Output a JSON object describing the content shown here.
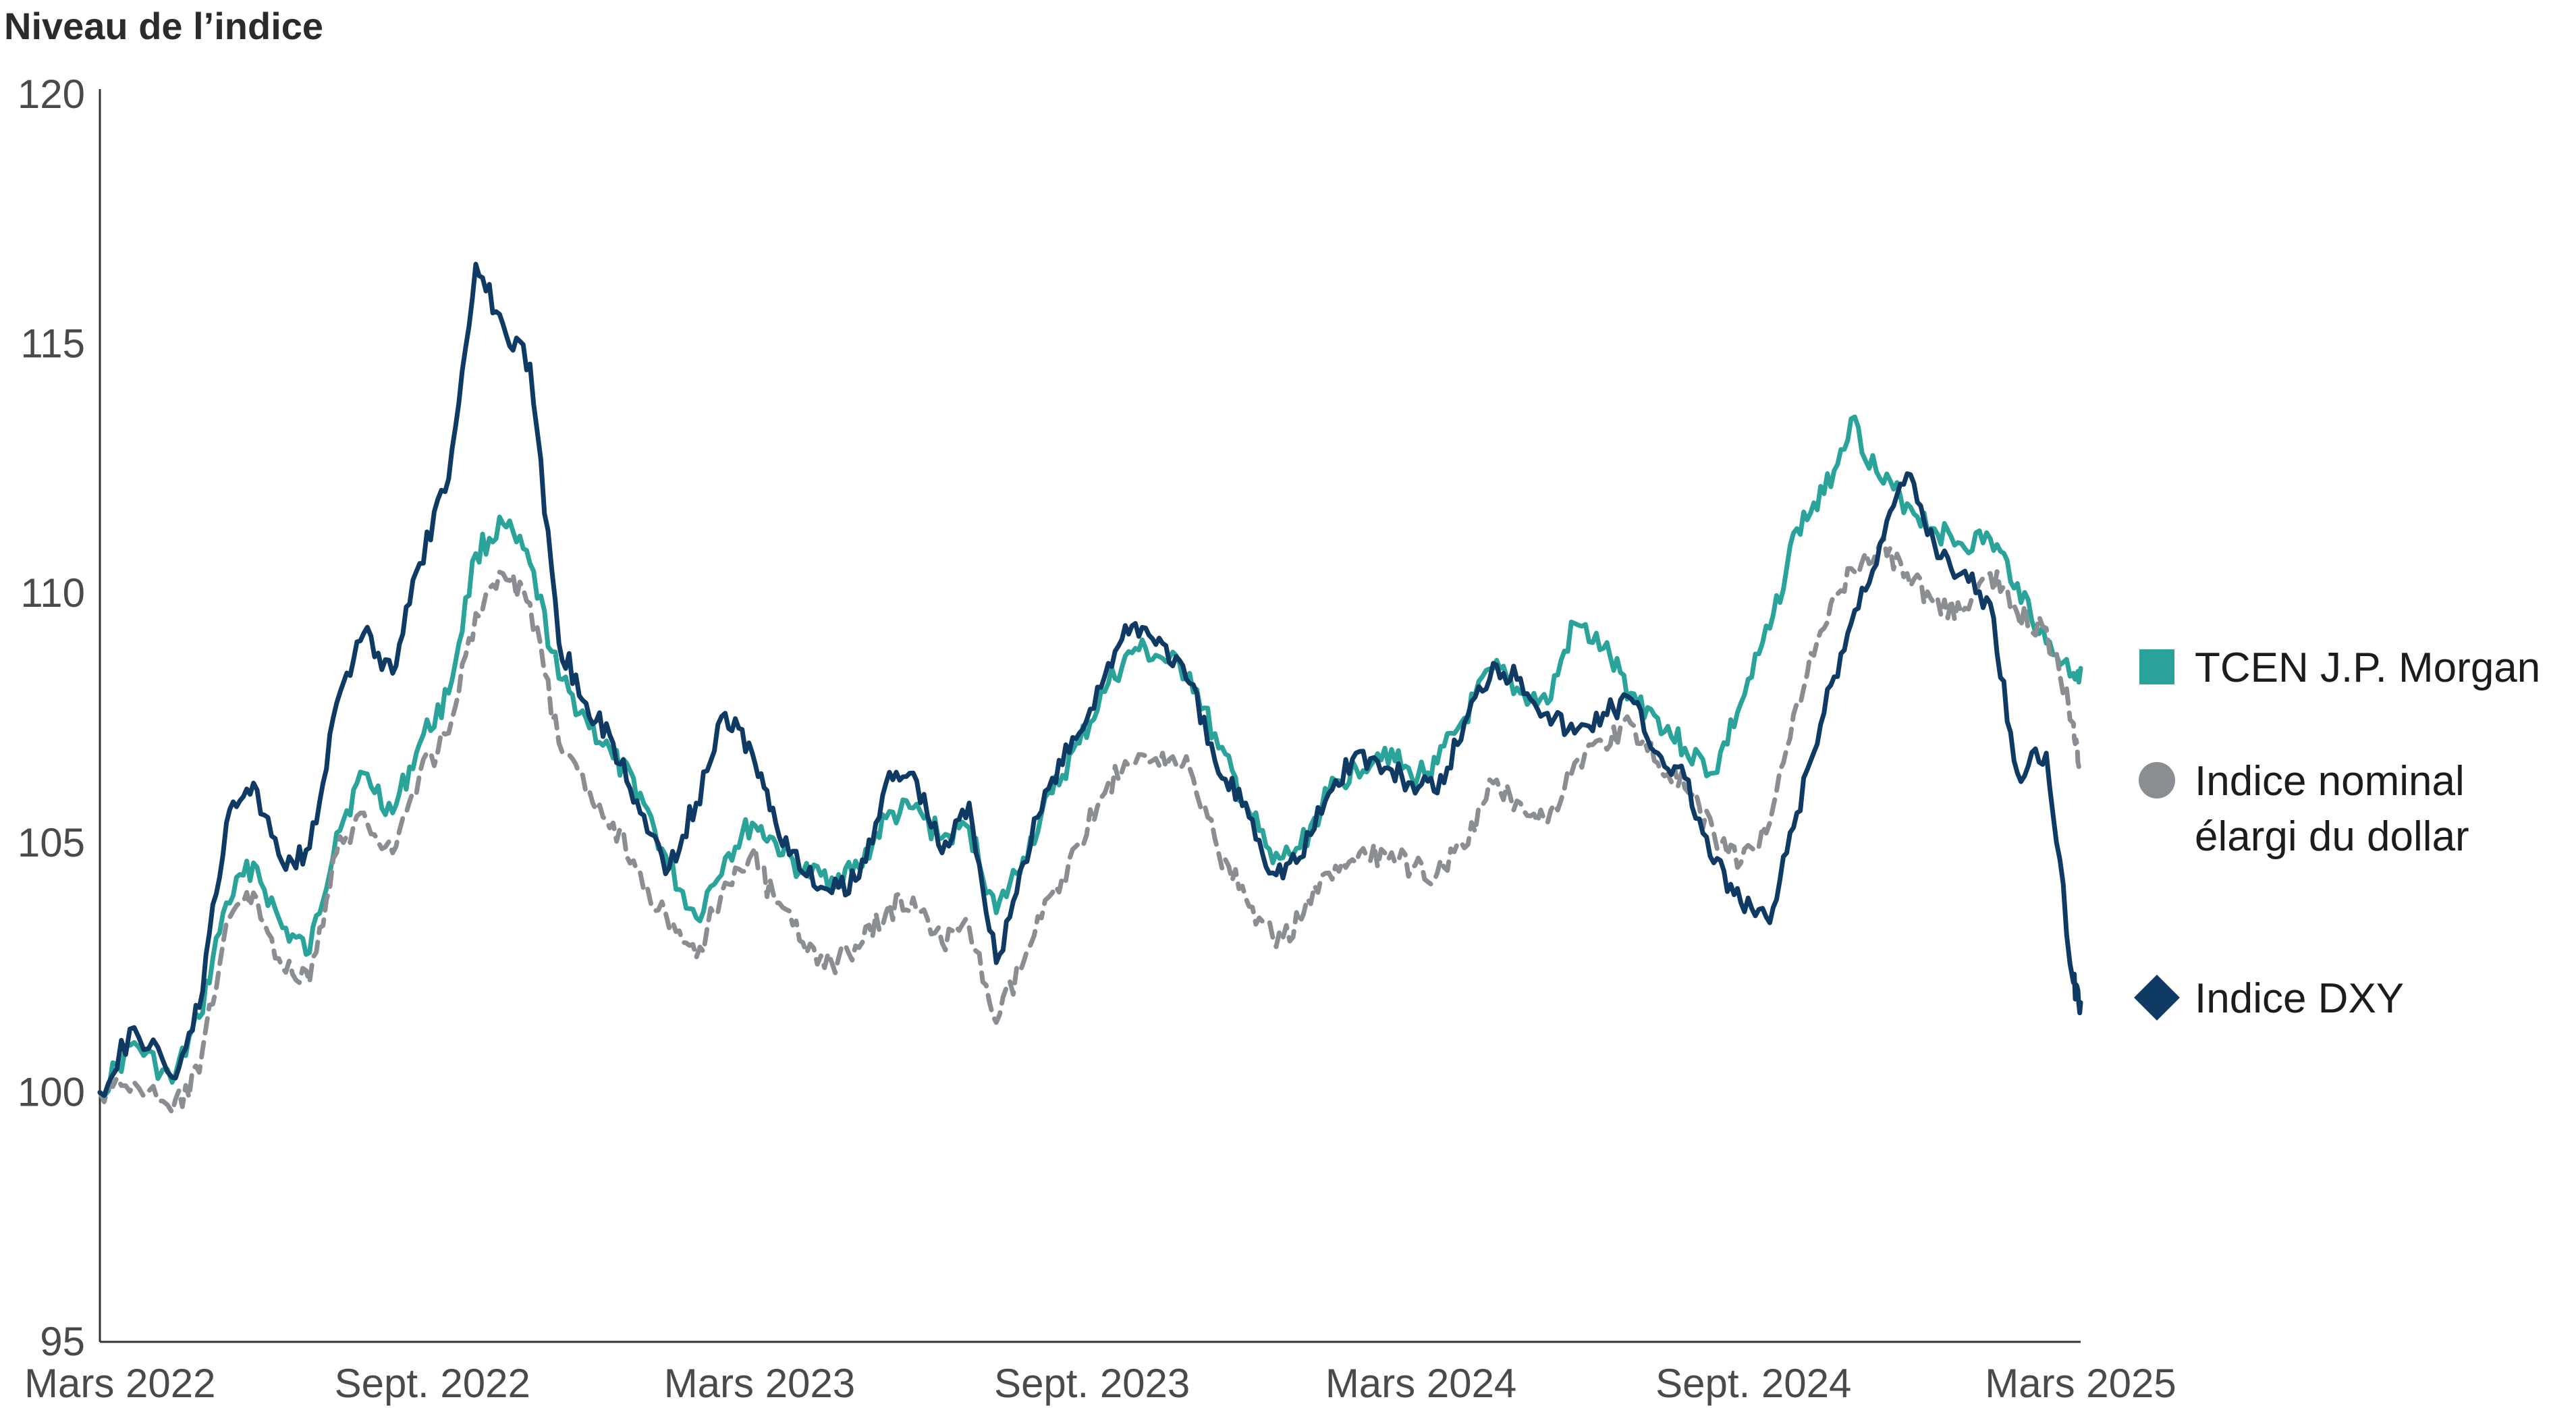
{
  "chart_data": {
    "type": "line",
    "title": "",
    "ylabel": "Niveau de l’indice",
    "xlabel": "",
    "ylim": [
      95,
      120
    ],
    "yticks": [
      95,
      100,
      105,
      110,
      115,
      120
    ],
    "xlim": [
      "2022-03-01",
      "2025-03-01"
    ],
    "xticks": [
      {
        "date": "2022-03-01",
        "label": "Mars 2022"
      },
      {
        "date": "2022-09-01",
        "label": "Sept. 2022"
      },
      {
        "date": "2023-03-01",
        "label": "Mars 2023"
      },
      {
        "date": "2023-09-01",
        "label": "Sept. 2023"
      },
      {
        "date": "2024-03-01",
        "label": "Mars 2024"
      },
      {
        "date": "2024-09-01",
        "label": "Sept. 2024"
      },
      {
        "date": "2025-03-01",
        "label": "Mars 2025"
      }
    ],
    "grid": false,
    "legend_position": "right-end-of-lines",
    "series": [
      {
        "name": "TCEN J.P. Morgan",
        "color": "#2aa39b",
        "style": "solid",
        "marker": "square",
        "points": [
          [
            "2022-03-01",
            100.0
          ],
          [
            "2022-03-20",
            101.0
          ],
          [
            "2022-04-10",
            100.2
          ],
          [
            "2022-04-25",
            101.5
          ],
          [
            "2022-05-10",
            103.8
          ],
          [
            "2022-05-25",
            104.6
          ],
          [
            "2022-06-10",
            103.3
          ],
          [
            "2022-06-25",
            102.8
          ],
          [
            "2022-07-10",
            105.2
          ],
          [
            "2022-07-25",
            106.4
          ],
          [
            "2022-08-10",
            105.6
          ],
          [
            "2022-08-25",
            107.0
          ],
          [
            "2022-09-10",
            108.0
          ],
          [
            "2022-09-25",
            110.8
          ],
          [
            "2022-10-10",
            111.4
          ],
          [
            "2022-10-25",
            110.6
          ],
          [
            "2022-11-10",
            108.3
          ],
          [
            "2022-11-25",
            107.5
          ],
          [
            "2022-12-10",
            106.7
          ],
          [
            "2022-12-25",
            106.0
          ],
          [
            "2023-01-10",
            104.5
          ],
          [
            "2023-01-25",
            103.5
          ],
          [
            "2023-02-10",
            104.7
          ],
          [
            "2023-02-25",
            105.4
          ],
          [
            "2023-03-10",
            105.0
          ],
          [
            "2023-03-25",
            104.4
          ],
          [
            "2023-04-10",
            104.3
          ],
          [
            "2023-04-25",
            104.5
          ],
          [
            "2023-05-10",
            105.5
          ],
          [
            "2023-05-25",
            105.7
          ],
          [
            "2023-06-10",
            105.1
          ],
          [
            "2023-06-25",
            105.3
          ],
          [
            "2023-07-10",
            103.6
          ],
          [
            "2023-07-25",
            104.7
          ],
          [
            "2023-08-10",
            106.0
          ],
          [
            "2023-08-25",
            107.0
          ],
          [
            "2023-09-10",
            108.2
          ],
          [
            "2023-09-25",
            108.9
          ],
          [
            "2023-10-10",
            108.7
          ],
          [
            "2023-10-25",
            108.4
          ],
          [
            "2023-11-10",
            106.9
          ],
          [
            "2023-11-25",
            105.8
          ],
          [
            "2023-12-10",
            104.6
          ],
          [
            "2023-12-25",
            104.9
          ],
          [
            "2024-01-10",
            106.0
          ],
          [
            "2024-01-25",
            106.5
          ],
          [
            "2024-02-10",
            106.9
          ],
          [
            "2024-02-25",
            106.3
          ],
          [
            "2024-03-10",
            106.6
          ],
          [
            "2024-03-25",
            107.5
          ],
          [
            "2024-04-10",
            108.5
          ],
          [
            "2024-04-25",
            108.0
          ],
          [
            "2024-05-10",
            107.8
          ],
          [
            "2024-05-25",
            109.4
          ],
          [
            "2024-06-10",
            108.9
          ],
          [
            "2024-06-25",
            108.0
          ],
          [
            "2024-07-10",
            107.5
          ],
          [
            "2024-07-25",
            106.9
          ],
          [
            "2024-08-10",
            106.4
          ],
          [
            "2024-08-25",
            107.8
          ],
          [
            "2024-09-10",
            109.3
          ],
          [
            "2024-09-25",
            111.3
          ],
          [
            "2024-10-10",
            112.0
          ],
          [
            "2024-10-25",
            113.5
          ],
          [
            "2024-11-10",
            112.3
          ],
          [
            "2024-11-25",
            111.8
          ],
          [
            "2024-12-10",
            111.3
          ],
          [
            "2024-12-25",
            111.0
          ],
          [
            "2025-01-10",
            111.1
          ],
          [
            "2025-01-25",
            110.2
          ],
          [
            "2025-02-10",
            109.0
          ],
          [
            "2025-02-25",
            108.4
          ],
          [
            "2025-03-01",
            108.5
          ]
        ]
      },
      {
        "name": "Indice nominal élargi du dollar",
        "color": "#8a8d91",
        "style": "dashed",
        "marker": "circle",
        "points": [
          [
            "2022-03-01",
            100.0
          ],
          [
            "2022-03-20",
            100.2
          ],
          [
            "2022-04-10",
            99.6
          ],
          [
            "2022-04-25",
            100.4
          ],
          [
            "2022-05-10",
            103.4
          ],
          [
            "2022-05-25",
            104.0
          ],
          [
            "2022-06-10",
            102.5
          ],
          [
            "2022-06-25",
            102.2
          ],
          [
            "2022-07-10",
            104.8
          ],
          [
            "2022-07-25",
            105.6
          ],
          [
            "2022-08-10",
            104.8
          ],
          [
            "2022-08-25",
            106.4
          ],
          [
            "2022-09-10",
            107.2
          ],
          [
            "2022-09-25",
            109.6
          ],
          [
            "2022-10-10",
            110.4
          ],
          [
            "2022-10-25",
            109.8
          ],
          [
            "2022-11-10",
            107.0
          ],
          [
            "2022-11-25",
            106.0
          ],
          [
            "2022-12-10",
            105.4
          ],
          [
            "2022-12-25",
            104.4
          ],
          [
            "2023-01-10",
            103.3
          ],
          [
            "2023-01-25",
            102.7
          ],
          [
            "2023-02-10",
            104.2
          ],
          [
            "2023-02-25",
            104.8
          ],
          [
            "2023-03-10",
            103.8
          ],
          [
            "2023-03-25",
            103.0
          ],
          [
            "2023-04-10",
            102.6
          ],
          [
            "2023-04-25",
            102.9
          ],
          [
            "2023-05-10",
            103.6
          ],
          [
            "2023-05-25",
            103.9
          ],
          [
            "2023-06-10",
            103.0
          ],
          [
            "2023-06-25",
            103.3
          ],
          [
            "2023-07-10",
            101.4
          ],
          [
            "2023-07-25",
            102.6
          ],
          [
            "2023-08-10",
            104.0
          ],
          [
            "2023-08-25",
            105.0
          ],
          [
            "2023-09-10",
            106.2
          ],
          [
            "2023-09-25",
            106.6
          ],
          [
            "2023-10-10",
            106.8
          ],
          [
            "2023-10-25",
            106.5
          ],
          [
            "2023-11-10",
            104.8
          ],
          [
            "2023-11-25",
            103.9
          ],
          [
            "2023-12-10",
            103.1
          ],
          [
            "2023-12-25",
            103.4
          ],
          [
            "2024-01-10",
            104.4
          ],
          [
            "2024-01-25",
            104.6
          ],
          [
            "2024-02-10",
            104.8
          ],
          [
            "2024-02-25",
            104.5
          ],
          [
            "2024-03-10",
            104.4
          ],
          [
            "2024-03-25",
            104.9
          ],
          [
            "2024-04-10",
            106.2
          ],
          [
            "2024-04-25",
            105.8
          ],
          [
            "2024-05-10",
            105.4
          ],
          [
            "2024-05-25",
            106.6
          ],
          [
            "2024-06-10",
            107.0
          ],
          [
            "2024-06-25",
            107.4
          ],
          [
            "2024-07-10",
            106.6
          ],
          [
            "2024-07-25",
            106.1
          ],
          [
            "2024-08-10",
            105.2
          ],
          [
            "2024-08-25",
            104.6
          ],
          [
            "2024-09-10",
            105.4
          ],
          [
            "2024-09-25",
            107.8
          ],
          [
            "2024-10-10",
            109.3
          ],
          [
            "2024-10-25",
            110.5
          ],
          [
            "2024-11-10",
            111.0
          ],
          [
            "2024-11-25",
            110.4
          ],
          [
            "2024-12-10",
            109.8
          ],
          [
            "2024-12-25",
            109.6
          ],
          [
            "2025-01-10",
            110.4
          ],
          [
            "2025-01-25",
            109.6
          ],
          [
            "2025-02-10",
            109.3
          ],
          [
            "2025-02-25",
            107.4
          ],
          [
            "2025-03-01",
            106.5
          ]
        ]
      },
      {
        "name": "Indice DXY",
        "color": "#0e3a63",
        "style": "solid",
        "marker": "diamond",
        "points": [
          [
            "2022-03-01",
            100.0
          ],
          [
            "2022-03-20",
            101.3
          ],
          [
            "2022-04-10",
            100.3
          ],
          [
            "2022-04-25",
            101.7
          ],
          [
            "2022-05-10",
            105.4
          ],
          [
            "2022-05-25",
            106.2
          ],
          [
            "2022-06-10",
            104.6
          ],
          [
            "2022-06-25",
            104.9
          ],
          [
            "2022-07-10",
            107.8
          ],
          [
            "2022-07-25",
            109.2
          ],
          [
            "2022-08-10",
            108.4
          ],
          [
            "2022-08-25",
            110.6
          ],
          [
            "2022-09-10",
            112.3
          ],
          [
            "2022-09-25",
            116.6
          ],
          [
            "2022-10-10",
            115.4
          ],
          [
            "2022-10-25",
            114.6
          ],
          [
            "2022-11-10",
            109.0
          ],
          [
            "2022-11-25",
            107.8
          ],
          [
            "2022-12-10",
            107.0
          ],
          [
            "2022-12-25",
            105.6
          ],
          [
            "2023-01-10",
            104.5
          ],
          [
            "2023-01-25",
            105.8
          ],
          [
            "2023-02-10",
            107.6
          ],
          [
            "2023-02-25",
            106.8
          ],
          [
            "2023-03-10",
            105.4
          ],
          [
            "2023-03-25",
            104.4
          ],
          [
            "2023-04-10",
            104.0
          ],
          [
            "2023-04-25",
            104.3
          ],
          [
            "2023-05-10",
            106.2
          ],
          [
            "2023-05-25",
            106.4
          ],
          [
            "2023-06-10",
            104.8
          ],
          [
            "2023-06-25",
            105.8
          ],
          [
            "2023-07-10",
            102.6
          ],
          [
            "2023-07-25",
            104.6
          ],
          [
            "2023-08-10",
            106.3
          ],
          [
            "2023-08-25",
            107.2
          ],
          [
            "2023-09-10",
            108.6
          ],
          [
            "2023-09-25",
            109.4
          ],
          [
            "2023-10-10",
            109.0
          ],
          [
            "2023-10-25",
            108.2
          ],
          [
            "2023-11-10",
            106.4
          ],
          [
            "2023-11-25",
            105.8
          ],
          [
            "2023-12-10",
            104.4
          ],
          [
            "2023-12-25",
            104.7
          ],
          [
            "2024-01-10",
            106.0
          ],
          [
            "2024-01-25",
            106.8
          ],
          [
            "2024-02-10",
            106.5
          ],
          [
            "2024-02-25",
            106.2
          ],
          [
            "2024-03-10",
            106.0
          ],
          [
            "2024-03-25",
            107.4
          ],
          [
            "2024-04-10",
            108.6
          ],
          [
            "2024-04-25",
            108.3
          ],
          [
            "2024-05-10",
            107.6
          ],
          [
            "2024-05-25",
            107.2
          ],
          [
            "2024-06-10",
            107.6
          ],
          [
            "2024-06-25",
            107.9
          ],
          [
            "2024-07-10",
            106.8
          ],
          [
            "2024-07-25",
            106.3
          ],
          [
            "2024-08-10",
            104.6
          ],
          [
            "2024-08-25",
            103.8
          ],
          [
            "2024-09-10",
            103.4
          ],
          [
            "2024-09-25",
            105.6
          ],
          [
            "2024-10-10",
            107.6
          ],
          [
            "2024-10-25",
            109.4
          ],
          [
            "2024-11-10",
            111.0
          ],
          [
            "2024-11-25",
            112.4
          ],
          [
            "2024-12-10",
            111.0
          ],
          [
            "2024-12-25",
            110.4
          ],
          [
            "2025-01-10",
            109.8
          ],
          [
            "2025-01-25",
            106.4
          ],
          [
            "2025-02-10",
            106.8
          ],
          [
            "2025-02-25",
            102.2
          ],
          [
            "2025-03-01",
            101.8
          ]
        ]
      }
    ]
  }
}
